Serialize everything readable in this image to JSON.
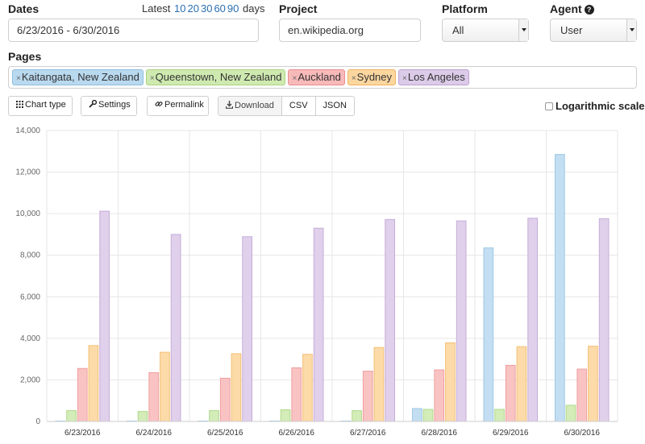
{
  "dates": {
    "label": "Dates",
    "latest_prefix": "Latest",
    "latest_options": [
      "10",
      "20",
      "30",
      "60",
      "90"
    ],
    "latest_suffix": "days",
    "range": "6/23/2016 - 6/30/2016"
  },
  "project": {
    "label": "Project",
    "value": "en.wikipedia.org"
  },
  "platform": {
    "label": "Platform",
    "value": "All"
  },
  "agent": {
    "label": "Agent",
    "value": "User",
    "help_icon": "question-circle-icon"
  },
  "pages": {
    "label": "Pages",
    "items": [
      {
        "label": "Kaitangata, New Zealand",
        "color": "#b9d9ef",
        "border": "#8fbedd"
      },
      {
        "label": "Queenstown, New Zealand",
        "color": "#cfeab0",
        "border": "#a9d47e"
      },
      {
        "label": "Auckland",
        "color": "#f8b9b9",
        "border": "#e98f8f"
      },
      {
        "label": "Sydney",
        "color": "#fbd69f",
        "border": "#efb55f"
      },
      {
        "label": "Los Angeles",
        "color": "#dccbe8",
        "border": "#bda2d2"
      }
    ]
  },
  "toolbar": {
    "chart_type": "Chart type",
    "settings": "Settings",
    "permalink": "Permalink",
    "download": "Download",
    "csv": "CSV",
    "json": "JSON",
    "log_scale": "Logarithmic scale"
  },
  "chart_data": {
    "type": "bar",
    "categories": [
      "6/23/2016",
      "6/24/2016",
      "6/25/2016",
      "6/26/2016",
      "6/27/2016",
      "6/28/2016",
      "6/29/2016",
      "6/30/2016"
    ],
    "ylim": [
      0,
      14000
    ],
    "yticks": [
      "0",
      "2,000",
      "4,000",
      "6,000",
      "8,000",
      "10,000",
      "12,000",
      "14,000"
    ],
    "grid": true,
    "series": [
      {
        "name": "Kaitangata, New Zealand",
        "fill": "#c3def2",
        "stroke": "#9cc7e6",
        "values": [
          20,
          20,
          20,
          20,
          20,
          620,
          8350,
          12850
        ]
      },
      {
        "name": "Queenstown, New Zealand",
        "fill": "#d4ecb8",
        "stroke": "#b0d98a",
        "values": [
          520,
          480,
          520,
          560,
          520,
          580,
          580,
          780
        ]
      },
      {
        "name": "Auckland",
        "fill": "#f9c3c3",
        "stroke": "#ef9e9e",
        "values": [
          2550,
          2350,
          2080,
          2580,
          2420,
          2480,
          2700,
          2520
        ]
      },
      {
        "name": "Sydney",
        "fill": "#fcdba9",
        "stroke": "#f4bf74",
        "values": [
          3650,
          3330,
          3260,
          3230,
          3560,
          3780,
          3600,
          3620
        ]
      },
      {
        "name": "Los Angeles",
        "fill": "#e0d0eb",
        "stroke": "#c6acd9",
        "values": [
          10120,
          9000,
          8890,
          9300,
          9720,
          9650,
          9780,
          9760
        ]
      }
    ]
  }
}
